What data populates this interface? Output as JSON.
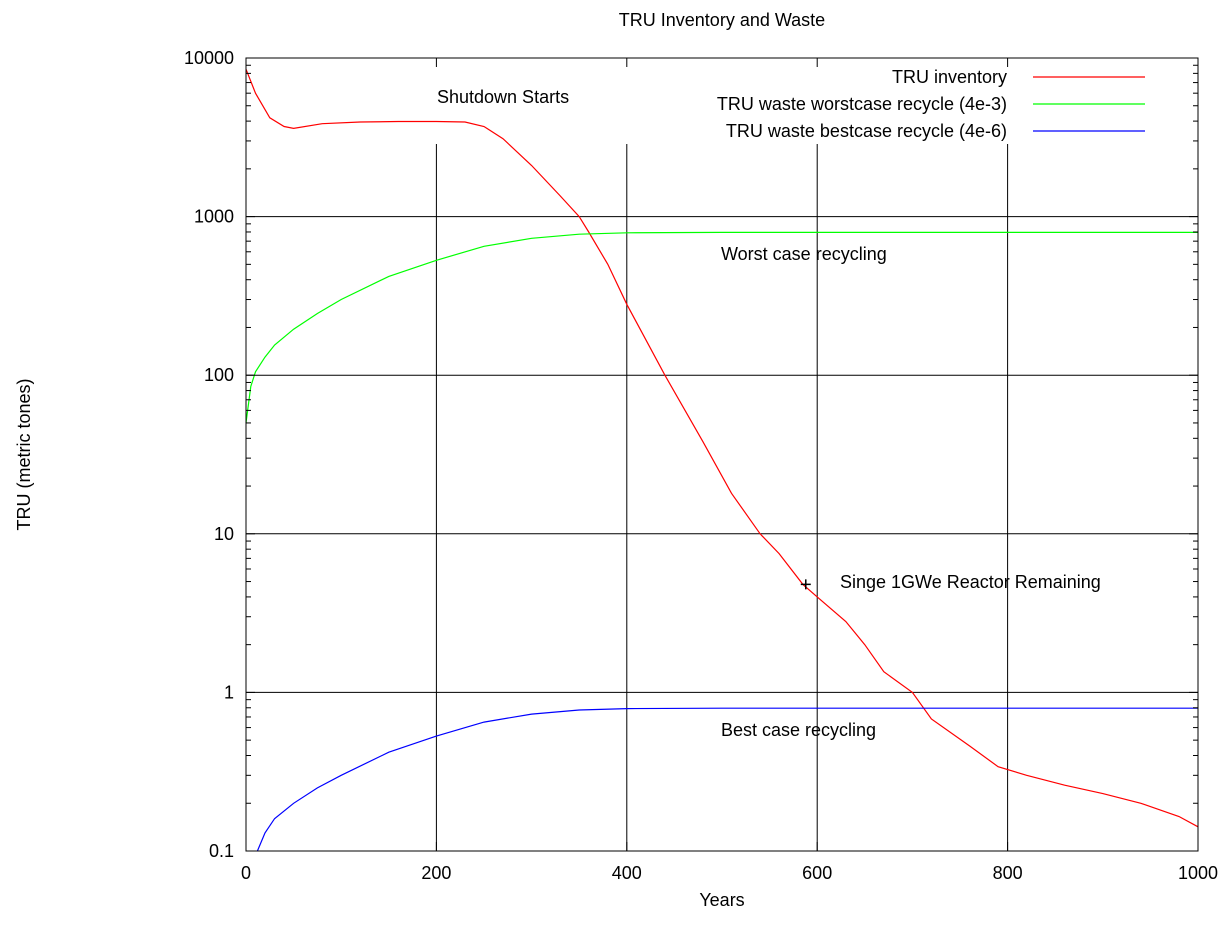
{
  "chart_data": {
    "type": "line",
    "title": "TRU Inventory and Waste",
    "xlabel": "Years",
    "ylabel": "TRU (metric tones)",
    "xlim": [
      0,
      1000
    ],
    "ylim": [
      0.1,
      10000
    ],
    "yscale": "log",
    "grid": true,
    "legend_position": "top-right",
    "x_ticks": [
      0,
      200,
      400,
      600,
      800,
      1000
    ],
    "x_tick_labels": [
      "0",
      "200",
      "400",
      "600",
      "800",
      "1000"
    ],
    "y_ticks": [
      0.1,
      1,
      10,
      100,
      1000,
      10000
    ],
    "y_tick_labels": [
      "0.1",
      "1",
      "10",
      "100",
      "1000",
      "10000"
    ],
    "series": [
      {
        "name": "TRU inventory",
        "color": "#ff0000",
        "points": [
          [
            0,
            8500
          ],
          [
            10,
            6000
          ],
          [
            25,
            4200
          ],
          [
            40,
            3700
          ],
          [
            50,
            3600
          ],
          [
            80,
            3850
          ],
          [
            120,
            3950
          ],
          [
            160,
            3980
          ],
          [
            200,
            3980
          ],
          [
            230,
            3950
          ],
          [
            250,
            3700
          ],
          [
            270,
            3100
          ],
          [
            300,
            2100
          ],
          [
            330,
            1350
          ],
          [
            350,
            1000
          ],
          [
            360,
            800
          ],
          [
            380,
            500
          ],
          [
            400,
            280
          ],
          [
            440,
            100
          ],
          [
            480,
            38
          ],
          [
            510,
            18
          ],
          [
            540,
            10
          ],
          [
            560,
            7.5
          ],
          [
            585,
            4.8
          ],
          [
            600,
            4.0
          ],
          [
            630,
            2.8
          ],
          [
            650,
            2.0
          ],
          [
            670,
            1.35
          ],
          [
            700,
            1.0
          ],
          [
            720,
            0.68
          ],
          [
            760,
            0.46
          ],
          [
            790,
            0.34
          ],
          [
            820,
            0.3
          ],
          [
            860,
            0.26
          ],
          [
            900,
            0.23
          ],
          [
            940,
            0.2
          ],
          [
            980,
            0.165
          ],
          [
            1000,
            0.142
          ]
        ]
      },
      {
        "name": "TRU waste worstcase recycle (4e-3)",
        "color": "#00ff00",
        "points": [
          [
            0,
            50
          ],
          [
            5,
            85
          ],
          [
            10,
            105
          ],
          [
            20,
            130
          ],
          [
            30,
            155
          ],
          [
            50,
            195
          ],
          [
            75,
            245
          ],
          [
            100,
            300
          ],
          [
            150,
            420
          ],
          [
            200,
            530
          ],
          [
            250,
            650
          ],
          [
            300,
            730
          ],
          [
            350,
            775
          ],
          [
            400,
            790
          ],
          [
            500,
            795
          ],
          [
            600,
            795
          ],
          [
            800,
            795
          ],
          [
            1000,
            795
          ]
        ]
      },
      {
        "name": "TRU waste bestcase recycle (4e-6)",
        "color": "#0000ff",
        "points": [
          [
            12,
            0.1
          ],
          [
            20,
            0.13
          ],
          [
            30,
            0.16
          ],
          [
            50,
            0.2
          ],
          [
            75,
            0.25
          ],
          [
            100,
            0.3
          ],
          [
            150,
            0.42
          ],
          [
            200,
            0.53
          ],
          [
            250,
            0.65
          ],
          [
            300,
            0.73
          ],
          [
            350,
            0.775
          ],
          [
            400,
            0.79
          ],
          [
            500,
            0.795
          ],
          [
            600,
            0.795
          ],
          [
            800,
            0.795
          ],
          [
            1000,
            0.795
          ]
        ]
      }
    ],
    "annotations": [
      {
        "text": "Shutdown Starts",
        "x": 200,
        "y": 4000
      },
      {
        "text": "Worst case recycling",
        "x": 625,
        "y": 500
      },
      {
        "text": "Singe 1GWe Reactor Remaining",
        "x": 600,
        "y": 5
      },
      {
        "text": "Best case recycling",
        "x": 625,
        "y": 0.5
      }
    ],
    "marker": {
      "symbol": "+",
      "x": 588,
      "y": 4.8
    }
  }
}
